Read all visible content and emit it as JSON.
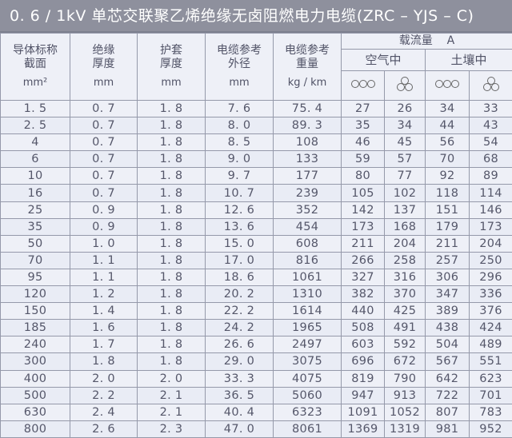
{
  "title": "0. 6 / 1kV 单芯交联聚乙烯绝缘无卤阻燃电力电缆(ZRC – YJS – C)",
  "headers": {
    "c1": [
      "导体标称",
      "截面",
      "mm²"
    ],
    "c2": [
      "绝缘",
      "厚度",
      "mm"
    ],
    "c3": [
      "护套",
      "厚度",
      "mm"
    ],
    "c4": [
      "电缆参考",
      "外径",
      "mm"
    ],
    "c5": [
      "电缆参考",
      "重量",
      "kg / km"
    ],
    "ampacity": "载流量    A",
    "air": "空气中",
    "soil": "土壤中",
    "icons": [
      "flat-formation-icon",
      "trefoil-formation-icon",
      "flat-formation-icon",
      "trefoil-formation-icon"
    ]
  },
  "rows": [
    [
      "1. 5",
      "0. 7",
      "1. 8",
      "7. 6",
      "75. 4",
      "27",
      "26",
      "34",
      "33"
    ],
    [
      "2. 5",
      "0. 7",
      "1. 8",
      "8. 0",
      "89. 3",
      "35",
      "34",
      "44",
      "43"
    ],
    [
      "4",
      "0. 7",
      "1. 8",
      "8. 5",
      "108",
      "46",
      "45",
      "56",
      "54"
    ],
    [
      "6",
      "0. 7",
      "1. 8",
      "9. 0",
      "133",
      "59",
      "57",
      "70",
      "68"
    ],
    [
      "10",
      "0. 7",
      "1. 8",
      "9. 7",
      "177",
      "80",
      "77",
      "92",
      "89"
    ],
    [
      "16",
      "0. 7",
      "1. 8",
      "10. 7",
      "239",
      "105",
      "102",
      "118",
      "114"
    ],
    [
      "25",
      "0. 9",
      "1. 8",
      "12. 6",
      "352",
      "142",
      "137",
      "151",
      "146"
    ],
    [
      "35",
      "0. 9",
      "1. 8",
      "13. 6",
      "454",
      "173",
      "168",
      "179",
      "173"
    ],
    [
      "50",
      "1. 0",
      "1. 8",
      "15. 0",
      "608",
      "211",
      "204",
      "211",
      "204"
    ],
    [
      "70",
      "1. 1",
      "1. 8",
      "17. 0",
      "816",
      "266",
      "258",
      "257",
      "250"
    ],
    [
      "95",
      "1. 1",
      "1. 8",
      "18. 6",
      "1061",
      "327",
      "316",
      "306",
      "296"
    ],
    [
      "120",
      "1. 2",
      "1. 8",
      "20. 2",
      "1310",
      "382",
      "370",
      "347",
      "336"
    ],
    [
      "150",
      "1. 4",
      "1. 8",
      "22. 2",
      "1614",
      "440",
      "425",
      "389",
      "376"
    ],
    [
      "185",
      "1. 6",
      "1. 8",
      "24. 2",
      "1965",
      "508",
      "491",
      "438",
      "424"
    ],
    [
      "240",
      "1. 7",
      "1. 8",
      "26. 6",
      "2497",
      "603",
      "592",
      "504",
      "489"
    ],
    [
      "300",
      "1. 8",
      "1. 8",
      "29. 0",
      "3075",
      "696",
      "672",
      "567",
      "551"
    ],
    [
      "400",
      "2. 0",
      "2. 0",
      "33. 3",
      "4075",
      "819",
      "790",
      "642",
      "623"
    ],
    [
      "500",
      "2. 2",
      "2. 1",
      "36. 5",
      "5060",
      "947",
      "913",
      "722",
      "701"
    ],
    [
      "630",
      "2. 4",
      "2. 1",
      "40. 4",
      "6323",
      "1091",
      "1052",
      "807",
      "783"
    ],
    [
      "800",
      "2. 6",
      "2. 3",
      "47. 0",
      "8061",
      "1369",
      "1319",
      "981",
      "952"
    ]
  ]
}
